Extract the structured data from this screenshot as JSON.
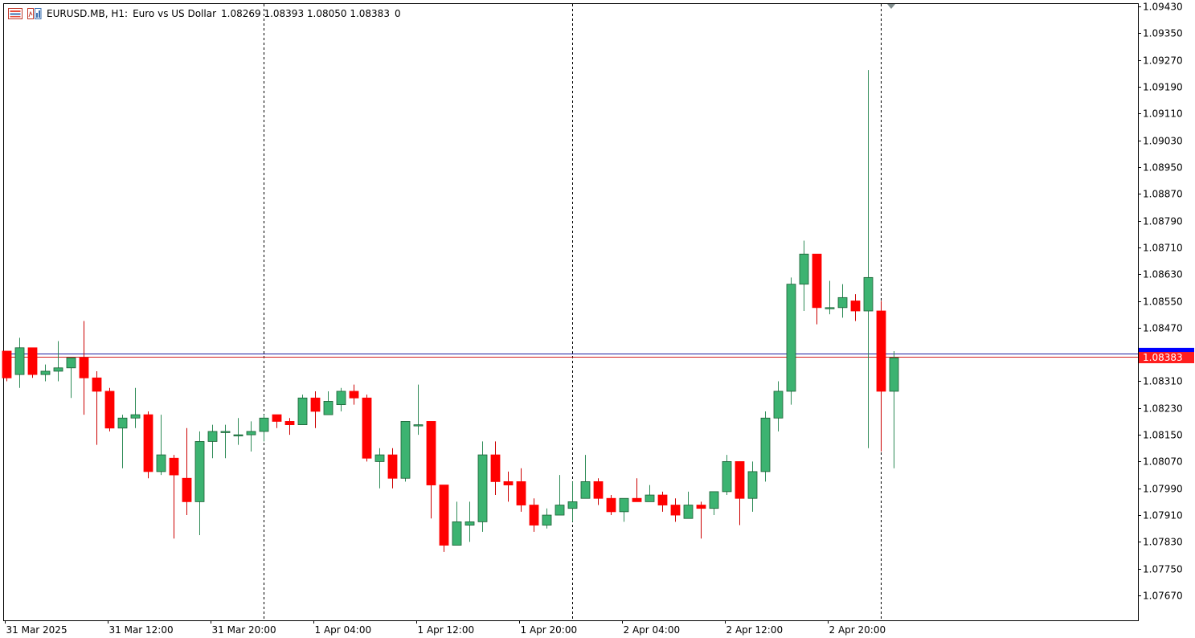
{
  "header": {
    "symbol": "EURUSD.MB, H1:",
    "description": "Euro vs US Dollar",
    "ohlc": "1.08269 1.08393 1.08050 1.08383",
    "volume": "0"
  },
  "colors": {
    "bull": "#3cb371",
    "bear": "#ff0000",
    "bid_line": "#d21e1e",
    "ask_line": "#1e1ea0",
    "ask_badge": "#0000ff",
    "bid_badge": "#ff1e1e",
    "axis": "#000000",
    "separator": "#000000"
  },
  "icons": [
    "chart-window-icon",
    "indicators-icon"
  ],
  "chart_data": {
    "type": "candlestick",
    "symbol": "EURUSD.MB",
    "timeframe": "H1",
    "ylim": [
      1.076,
      1.0944
    ],
    "y_ticks": [
      "1.09430",
      "1.09350",
      "1.09270",
      "1.09190",
      "1.09110",
      "1.09030",
      "1.08950",
      "1.08870",
      "1.08790",
      "1.08710",
      "1.08630",
      "1.08550",
      "1.08470",
      "1.08310",
      "1.08230",
      "1.08150",
      "1.08070",
      "1.07990",
      "1.07910",
      "1.07830",
      "1.07750",
      "1.07670"
    ],
    "x_ticks": [
      {
        "label": "31 Mar 2025",
        "index": 0
      },
      {
        "label": "31 Mar 12:00",
        "index": 8
      },
      {
        "label": "31 Mar 20:00",
        "index": 16
      },
      {
        "label": "1 Apr 04:00",
        "index": 24
      },
      {
        "label": "1 Apr 12:00",
        "index": 32
      },
      {
        "label": "1 Apr 20:00",
        "index": 40
      },
      {
        "label": "2 Apr 04:00",
        "index": 48
      },
      {
        "label": "2 Apr 12:00",
        "index": 56
      },
      {
        "label": "2 Apr 20:00",
        "index": 64
      }
    ],
    "day_separators": [
      20,
      44,
      68
    ],
    "bid_price": "1.08383",
    "bid_value": 1.08383,
    "ask_value": 1.08393,
    "candles": [
      [
        1.084,
        1.084,
        1.0831,
        1.0832
      ],
      [
        1.0833,
        1.0844,
        1.0829,
        1.0841
      ],
      [
        1.0841,
        1.0841,
        1.0832,
        1.0833
      ],
      [
        1.0833,
        1.0836,
        1.0831,
        1.0834
      ],
      [
        1.0834,
        1.0843,
        1.0831,
        1.0835
      ],
      [
        1.0835,
        1.0838,
        1.0826,
        1.0838
      ],
      [
        1.0838,
        1.0849,
        1.0821,
        1.0832
      ],
      [
        1.0832,
        1.0834,
        1.0812,
        1.0828
      ],
      [
        1.0828,
        1.0829,
        1.0816,
        1.0817
      ],
      [
        1.0817,
        1.0821,
        1.0805,
        1.082
      ],
      [
        1.082,
        1.0829,
        1.0817,
        1.0821
      ],
      [
        1.0821,
        1.0822,
        1.0802,
        1.0804
      ],
      [
        1.0804,
        1.0821,
        1.0803,
        1.0809
      ],
      [
        1.0808,
        1.0809,
        1.0784,
        1.0803
      ],
      [
        1.0802,
        1.0817,
        1.0791,
        1.0795
      ],
      [
        1.0795,
        1.0816,
        1.0785,
        1.0813
      ],
      [
        1.0813,
        1.0818,
        1.0808,
        1.0816
      ],
      [
        1.0816,
        1.0818,
        1.0808,
        1.0816
      ],
      [
        1.0815,
        1.082,
        1.0812,
        1.0815
      ],
      [
        1.0815,
        1.0819,
        1.081,
        1.0816
      ],
      [
        1.0816,
        1.0821,
        1.0813,
        1.082
      ],
      [
        1.0821,
        1.0821,
        1.0817,
        1.0819
      ],
      [
        1.0819,
        1.082,
        1.0815,
        1.0818
      ],
      [
        1.0818,
        1.0827,
        1.0818,
        1.0826
      ],
      [
        1.0826,
        1.0828,
        1.0817,
        1.0822
      ],
      [
        1.0821,
        1.0828,
        1.0821,
        1.0825
      ],
      [
        1.0824,
        1.0829,
        1.0822,
        1.0828
      ],
      [
        1.0828,
        1.083,
        1.0824,
        1.0826
      ],
      [
        1.0826,
        1.0827,
        1.0807,
        1.0808
      ],
      [
        1.0807,
        1.0811,
        1.0799,
        1.0809
      ],
      [
        1.0809,
        1.0811,
        1.0799,
        1.0802
      ],
      [
        1.0802,
        1.0819,
        1.0801,
        1.0819
      ],
      [
        1.0818,
        1.083,
        1.0815,
        1.0818
      ],
      [
        1.0819,
        1.0819,
        1.079,
        1.08
      ],
      [
        1.08,
        1.08,
        1.078,
        1.0782
      ],
      [
        1.0782,
        1.0795,
        1.0782,
        1.0789
      ],
      [
        1.0788,
        1.0795,
        1.0783,
        1.0789
      ],
      [
        1.0789,
        1.0813,
        1.0786,
        1.0809
      ],
      [
        1.0809,
        1.0813,
        1.0797,
        1.0801
      ],
      [
        1.0801,
        1.0804,
        1.0795,
        1.08
      ],
      [
        1.0801,
        1.0805,
        1.0792,
        1.0794
      ],
      [
        1.0794,
        1.0796,
        1.0786,
        1.0788
      ],
      [
        1.0788,
        1.0793,
        1.0787,
        1.0791
      ],
      [
        1.0791,
        1.0803,
        1.0791,
        1.0794
      ],
      [
        1.0793,
        1.0801,
        1.0789,
        1.0795
      ],
      [
        1.0796,
        1.0809,
        1.0796,
        1.0801
      ],
      [
        1.0801,
        1.0802,
        1.0794,
        1.0796
      ],
      [
        1.0796,
        1.0797,
        1.0791,
        1.0792
      ],
      [
        1.0792,
        1.0796,
        1.0789,
        1.0796
      ],
      [
        1.0796,
        1.0802,
        1.0795,
        1.0795
      ],
      [
        1.0795,
        1.08,
        1.0796,
        1.0797
      ],
      [
        1.0797,
        1.0798,
        1.0792,
        1.0794
      ],
      [
        1.0794,
        1.0796,
        1.0789,
        1.0791
      ],
      [
        1.079,
        1.0798,
        1.079,
        1.0794
      ],
      [
        1.0794,
        1.0795,
        1.0784,
        1.0793
      ],
      [
        1.0793,
        1.0798,
        1.0791,
        1.0798
      ],
      [
        1.0798,
        1.0809,
        1.0797,
        1.0807
      ],
      [
        1.0807,
        1.0807,
        1.0788,
        1.0796
      ],
      [
        1.0796,
        1.0807,
        1.0792,
        1.0804
      ],
      [
        1.0804,
        1.0822,
        1.0801,
        1.082
      ],
      [
        1.082,
        1.0831,
        1.0816,
        1.0828
      ],
      [
        1.0828,
        1.0862,
        1.0824,
        1.086
      ],
      [
        1.086,
        1.0873,
        1.0852,
        1.0869
      ],
      [
        1.0869,
        1.0869,
        1.0848,
        1.0853
      ],
      [
        1.0853,
        1.0861,
        1.0851,
        1.0853
      ],
      [
        1.0853,
        1.086,
        1.085,
        1.0856
      ],
      [
        1.0855,
        1.0857,
        1.0849,
        1.0852
      ],
      [
        1.0852,
        1.0924,
        1.0811,
        1.0862
      ],
      [
        1.0852,
        1.0855,
        1.081,
        1.0828
      ],
      [
        1.0828,
        1.084,
        1.0805,
        1.0838
      ]
    ]
  }
}
